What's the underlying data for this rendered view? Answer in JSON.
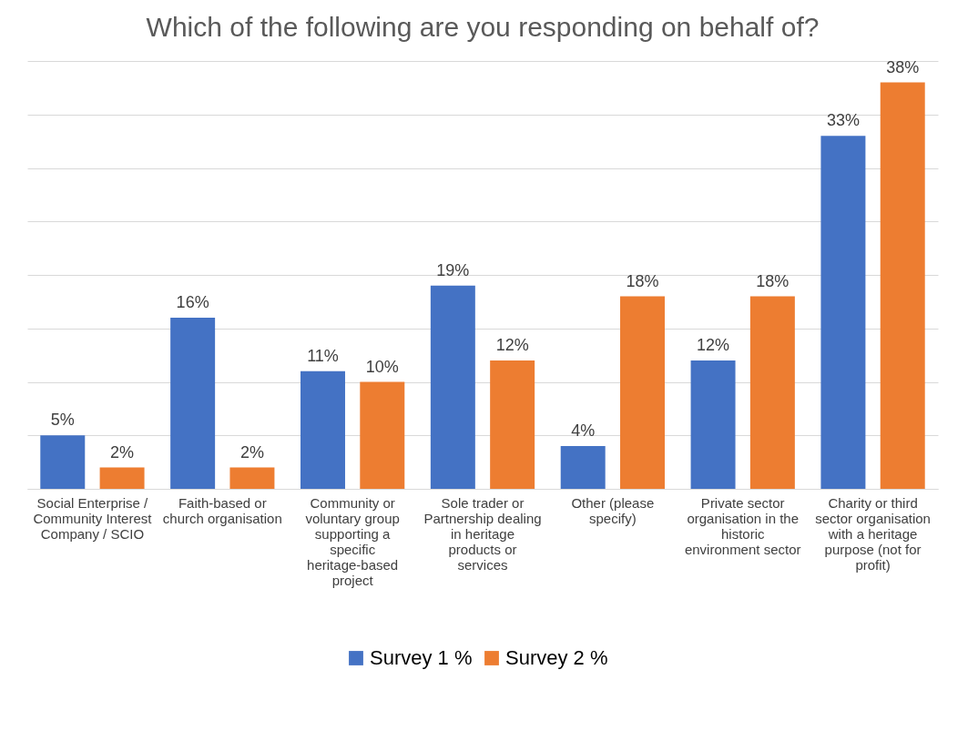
{
  "chart_data": {
    "type": "bar",
    "title": "Which of the following are you responding on behalf of?",
    "categories": [
      "Social Enterprise / Community Interest Company / SCIO",
      "Faith-based or church organisation",
      "Community or voluntary group supporting a specific heritage-based project",
      "Sole trader or Partnership dealing in heritage products or services",
      "Other (please specify)",
      "Private sector organisation in the historic environment sector",
      "Charity or third sector organisation with a heritage purpose (not for profit)"
    ],
    "series": [
      {
        "name": "Survey 1 %",
        "color": "#4472c4",
        "values": [
          5,
          16,
          11,
          19,
          4,
          12,
          33
        ],
        "value_labels": [
          "5%",
          "16%",
          "11%",
          "19%",
          "4%",
          "12%",
          "33%"
        ]
      },
      {
        "name": "Survey 2 %",
        "color": "#ed7d31",
        "values": [
          2,
          2,
          10,
          12,
          18,
          18,
          38
        ],
        "value_labels": [
          "2%",
          "2%",
          "10%",
          "12%",
          "18%",
          "18%",
          "38%"
        ]
      }
    ],
    "ylim": [
      0,
      40
    ],
    "yticks": [
      {
        "value": 0,
        "label": null
      },
      {
        "value": 5,
        "label": null
      },
      {
        "value": 10,
        "label": null
      },
      {
        "value": 15,
        "label": null
      },
      {
        "value": 20,
        "label": null
      },
      {
        "value": 25,
        "label": null
      },
      {
        "value": 30,
        "label": null
      },
      {
        "value": 35,
        "label": null
      },
      {
        "value": 40,
        "label": null
      }
    ],
    "tick_labels": "x",
    "grid": "y",
    "legend": "bottom"
  }
}
